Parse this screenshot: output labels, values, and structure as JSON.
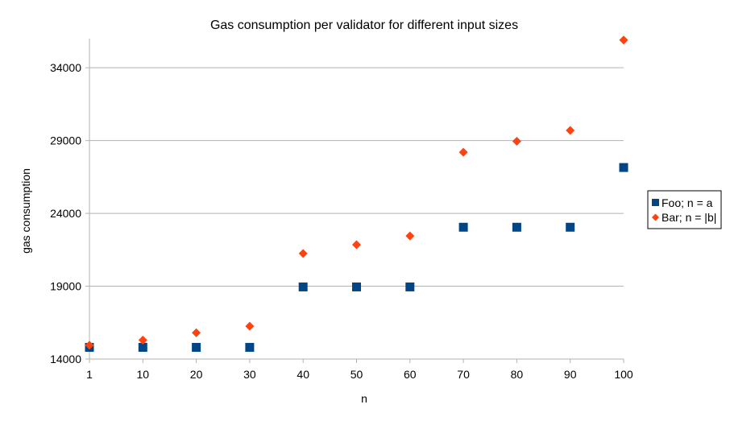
{
  "chart_data": {
    "type": "scatter",
    "title": "Gas consumption per validator for different input sizes",
    "xlabel": "n",
    "ylabel": "gas consumption",
    "x": [
      1,
      10,
      20,
      30,
      40,
      50,
      60,
      70,
      80,
      90,
      100
    ],
    "x_tick_labels": [
      "1",
      "10",
      "20",
      "30",
      "40",
      "50",
      "60",
      "70",
      "80",
      "90",
      "100"
    ],
    "ylim": [
      14000,
      36000
    ],
    "y_ticks": [
      14000,
      19000,
      24000,
      29000,
      34000
    ],
    "y_tick_labels": [
      "14000",
      "19000",
      "24000",
      "29000",
      "34000"
    ],
    "grid": "horizontal",
    "legend_position": "right",
    "series": [
      {
        "name": "Foo; n = a",
        "marker": "square",
        "color": "#004586",
        "values": [
          14800,
          14800,
          14800,
          14800,
          18950,
          18950,
          18950,
          23050,
          23050,
          23050,
          27150
        ]
      },
      {
        "name": "Bar; n = |b|",
        "marker": "diamond",
        "color": "#ff420e",
        "values": [
          14950,
          15300,
          15800,
          16250,
          21250,
          21850,
          22450,
          28200,
          28950,
          29700,
          35900
        ]
      }
    ]
  }
}
